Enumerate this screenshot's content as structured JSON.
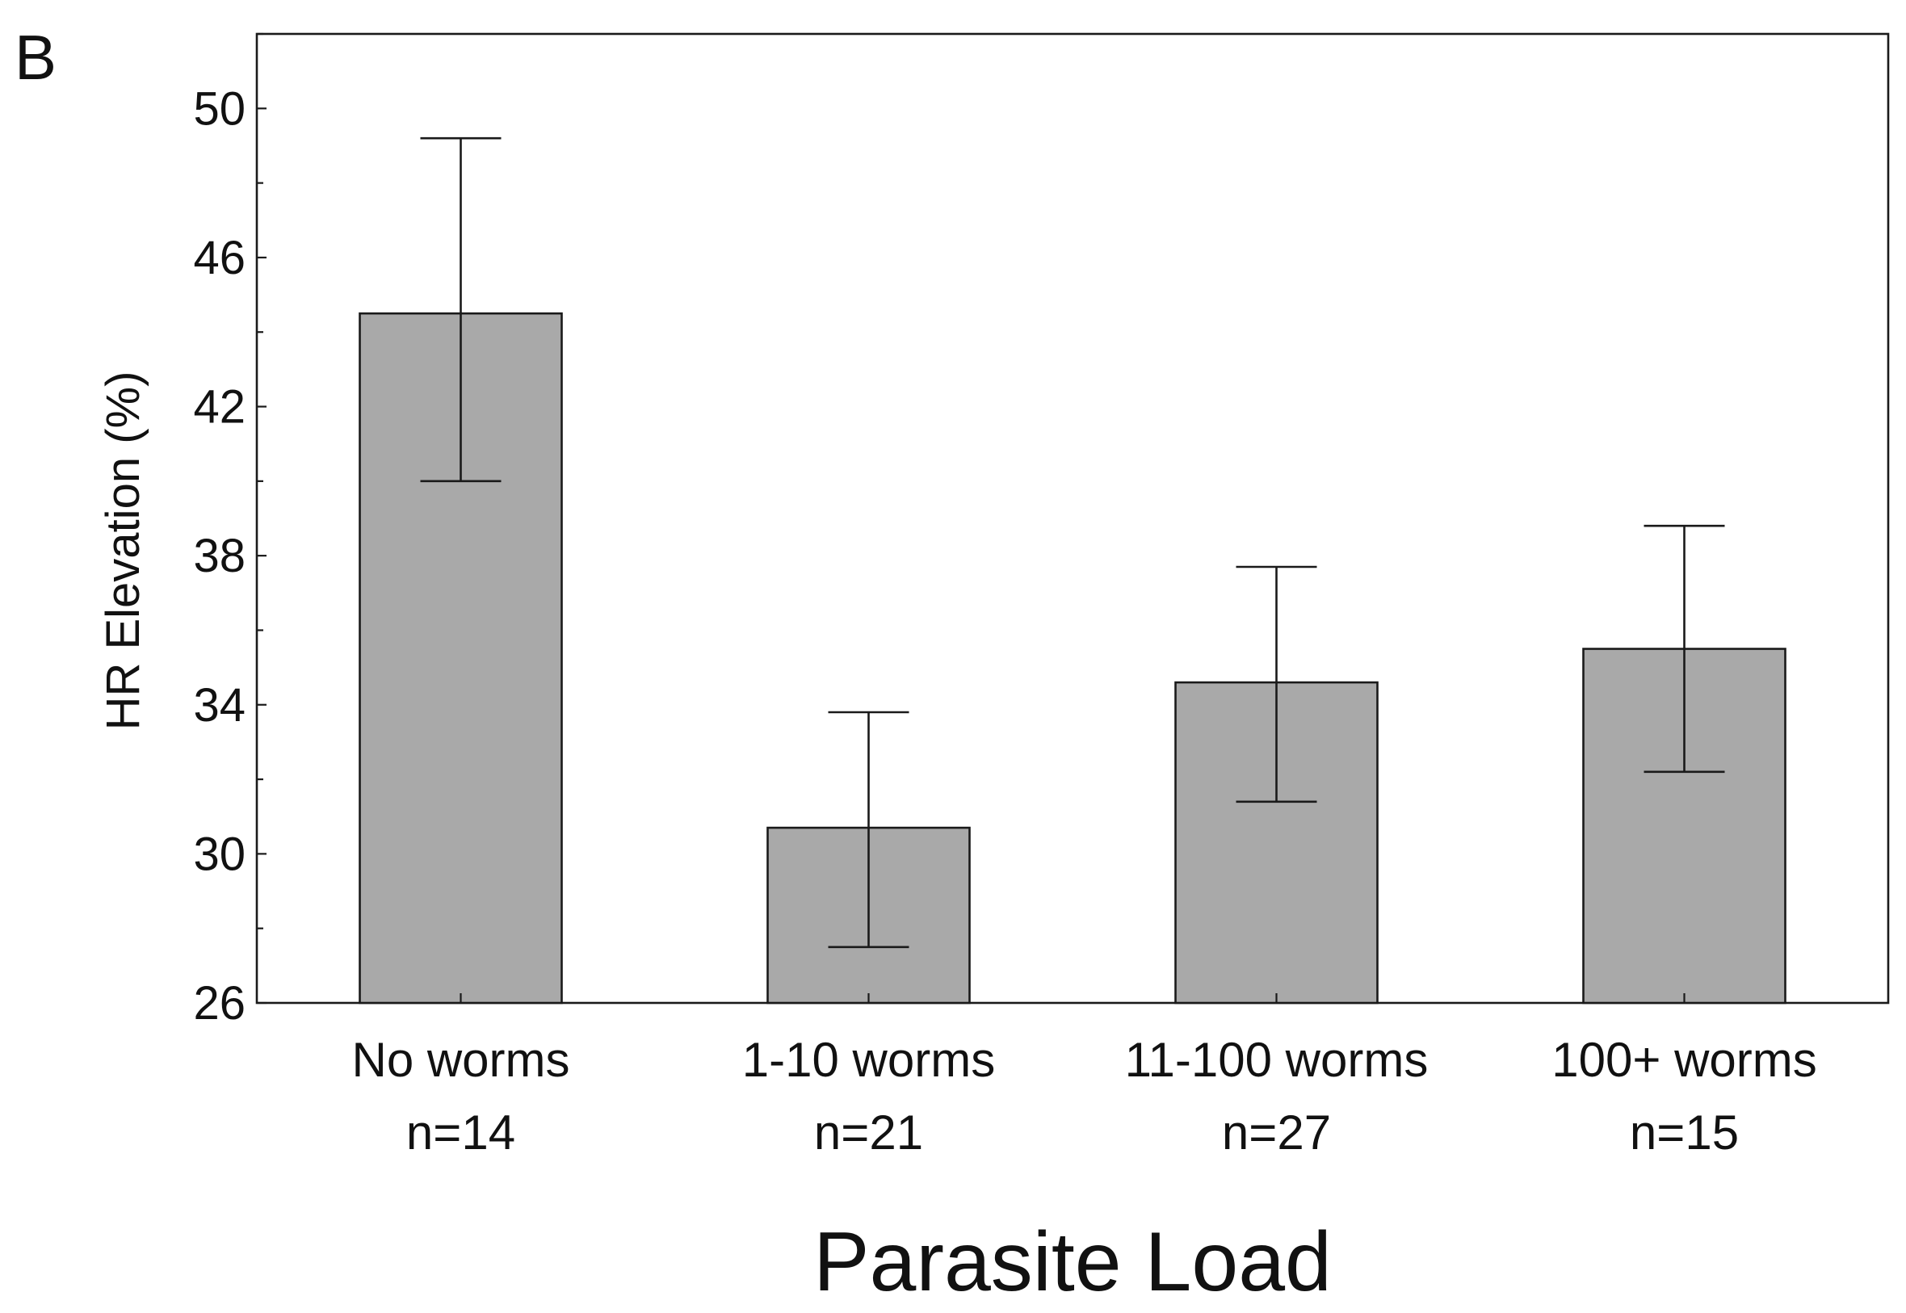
{
  "chart_data": {
    "type": "bar",
    "panel_label": "B",
    "title": "",
    "xlabel": "Parasite Load",
    "ylabel": "HR Elevation (%)",
    "ylim": [
      26,
      52
    ],
    "yticks": [
      26,
      30,
      34,
      38,
      42,
      46,
      50
    ],
    "categories": [
      "No worms",
      "1-10 worms",
      "11-100 worms",
      "100+ worms"
    ],
    "sample_sizes": [
      "n=14",
      "n=21",
      "n=27",
      "n=15"
    ],
    "values": [
      44.5,
      30.7,
      34.6,
      35.5
    ],
    "error_upper": [
      49.2,
      33.8,
      37.7,
      38.8
    ],
    "error_lower": [
      40.0,
      27.5,
      31.4,
      32.2
    ],
    "grid": false,
    "bar_color": "#a9a9a9",
    "edge_color": "#1a1a1a"
  }
}
